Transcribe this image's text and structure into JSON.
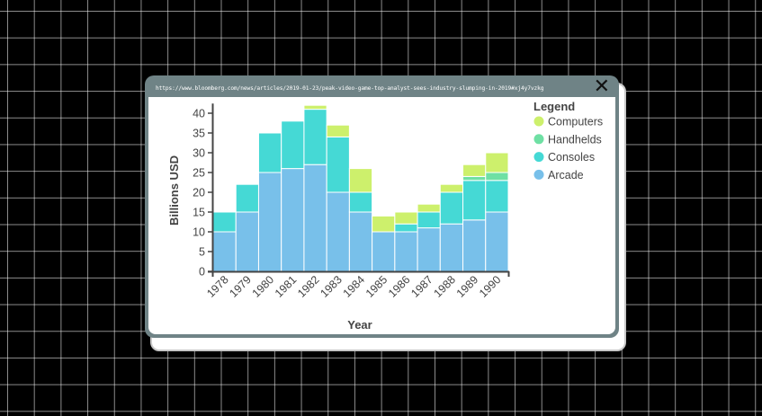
{
  "popup": {
    "url": "https://www.bloomberg.com/news/articles/2019-01-23/peak-video-game-top-analyst-sees-industry-slumping-in-2019#xj4y7vzkg",
    "close_label": "✕"
  },
  "chart_data": {
    "type": "bar",
    "stacked": true,
    "categories": [
      "1978",
      "1979",
      "1980",
      "1981",
      "1982",
      "1983",
      "1984",
      "1985",
      "1986",
      "1987",
      "1988",
      "1989",
      "1990"
    ],
    "series": [
      {
        "name": "Arcade",
        "color": "#78c0ea",
        "values": [
          10,
          15,
          25,
          26,
          27,
          20,
          15,
          10,
          10,
          11,
          12,
          13,
          15
        ]
      },
      {
        "name": "Consoles",
        "color": "#45d9d5",
        "values": [
          5,
          7,
          10,
          12,
          14,
          14,
          5,
          0,
          2,
          4,
          8,
          10,
          8
        ]
      },
      {
        "name": "Handhelds",
        "color": "#6fe0a4",
        "values": [
          0,
          0,
          0,
          0,
          0,
          0,
          0,
          0,
          0,
          0,
          0,
          1,
          2
        ]
      },
      {
        "name": "Computers",
        "color": "#cdf06c",
        "values": [
          0,
          0,
          0,
          0,
          1,
          3,
          6,
          4,
          3,
          2,
          2,
          3,
          5
        ]
      }
    ],
    "xlabel": "Year",
    "ylabel": "Billions USD",
    "ylim": [
      0,
      42
    ],
    "yticks": [
      0,
      5,
      10,
      15,
      20,
      25,
      30,
      35,
      40
    ],
    "legend": {
      "title": "Legend",
      "placement": "right",
      "items": [
        {
          "name": "Computers",
          "color": "#cdf06c"
        },
        {
          "name": "Handhelds",
          "color": "#6fe0a4"
        },
        {
          "name": "Consoles",
          "color": "#45d9d5"
        },
        {
          "name": "Arcade",
          "color": "#78c0ea"
        }
      ]
    }
  }
}
